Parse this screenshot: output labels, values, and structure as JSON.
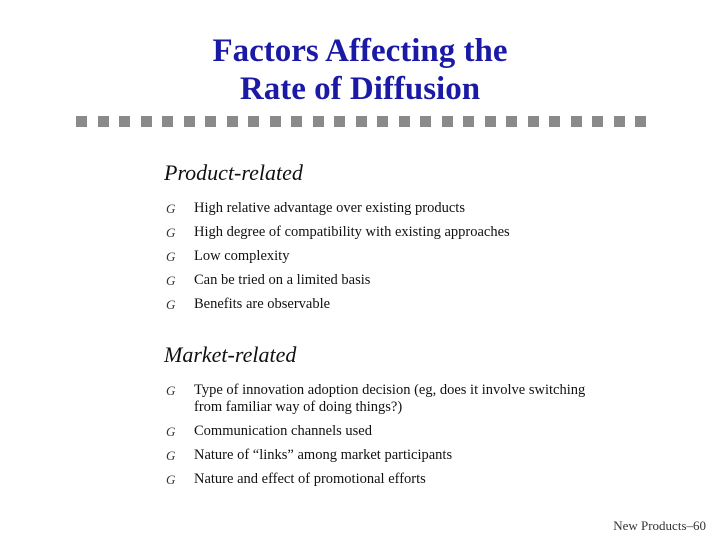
{
  "slide": {
    "title_line1": "Factors Affecting the",
    "title_line2": "Rate of Diffusion",
    "divider_squares": 27,
    "bullet_glyph": "G",
    "sections": [
      {
        "heading": "Product-related",
        "items": [
          "High relative advantage over existing products",
          "High degree of compatibility with existing approaches",
          "Low complexity",
          "Can be tried on a limited basis",
          "Benefits are observable"
        ]
      },
      {
        "heading": "Market-related",
        "items": [
          "Type of innovation adoption decision (eg, does it involve switching from familiar way of doing things?)",
          "Communication channels used",
          "Nature of “links” among market participants",
          "Nature and effect of promotional efforts"
        ]
      }
    ],
    "footer": "New Products–60",
    "colors": {
      "title": "#1a1aa6",
      "divider": "#8a8a8a"
    }
  }
}
